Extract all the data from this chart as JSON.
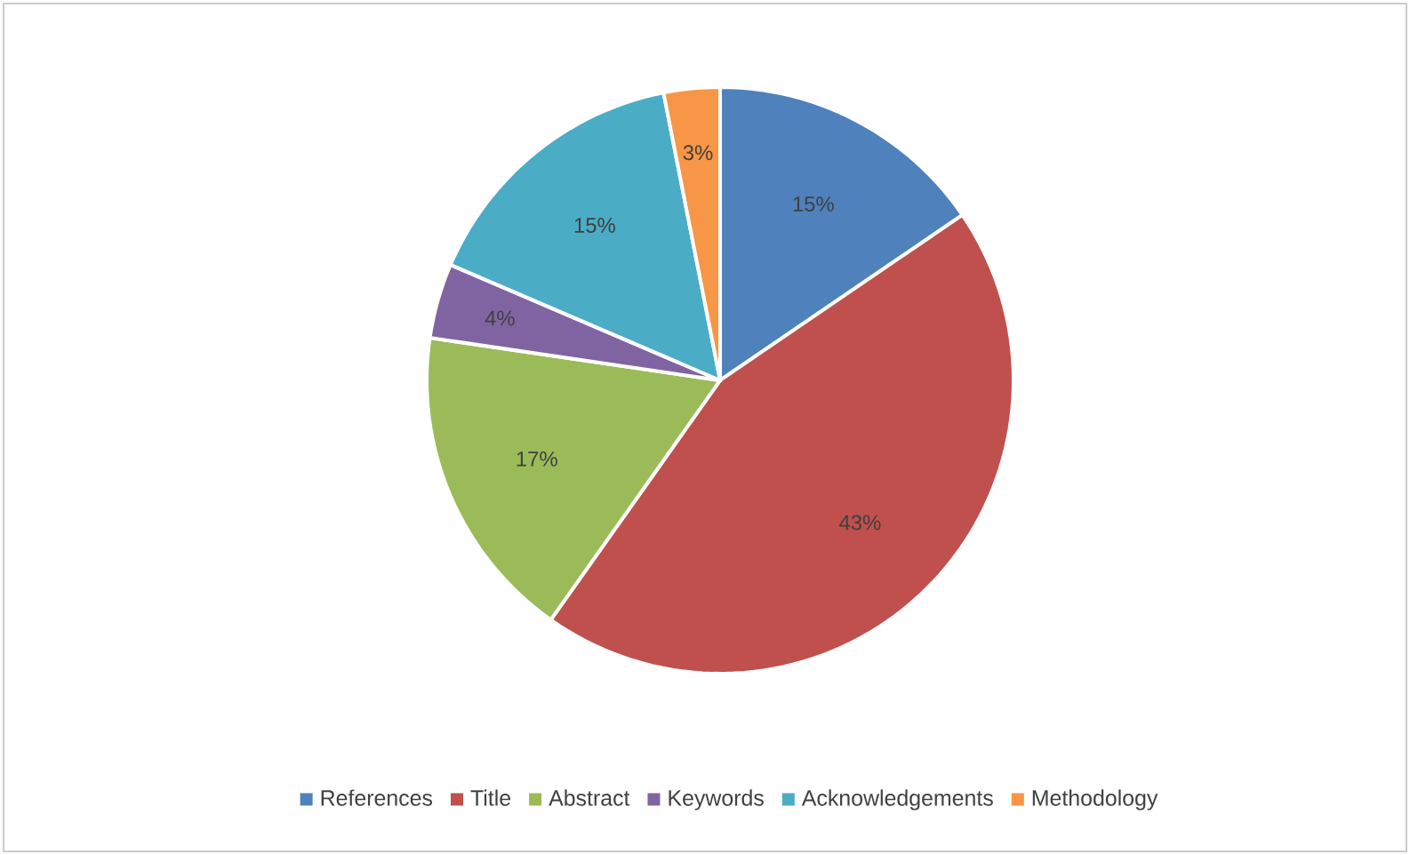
{
  "chart_data": {
    "type": "pie",
    "categories": [
      "References",
      "Title",
      "Abstract",
      "Keywords",
      "Acknowledgements",
      "Methodology"
    ],
    "values": [
      15,
      43,
      17,
      4,
      15,
      3
    ],
    "colors": [
      "#4f81bd",
      "#c0504d",
      "#9bbb59",
      "#8064a2",
      "#4bacc6",
      "#f79646"
    ],
    "value_labels": [
      "15%",
      "43%",
      "17%",
      "4%",
      "15%",
      "3%"
    ],
    "legend": "bottom"
  }
}
